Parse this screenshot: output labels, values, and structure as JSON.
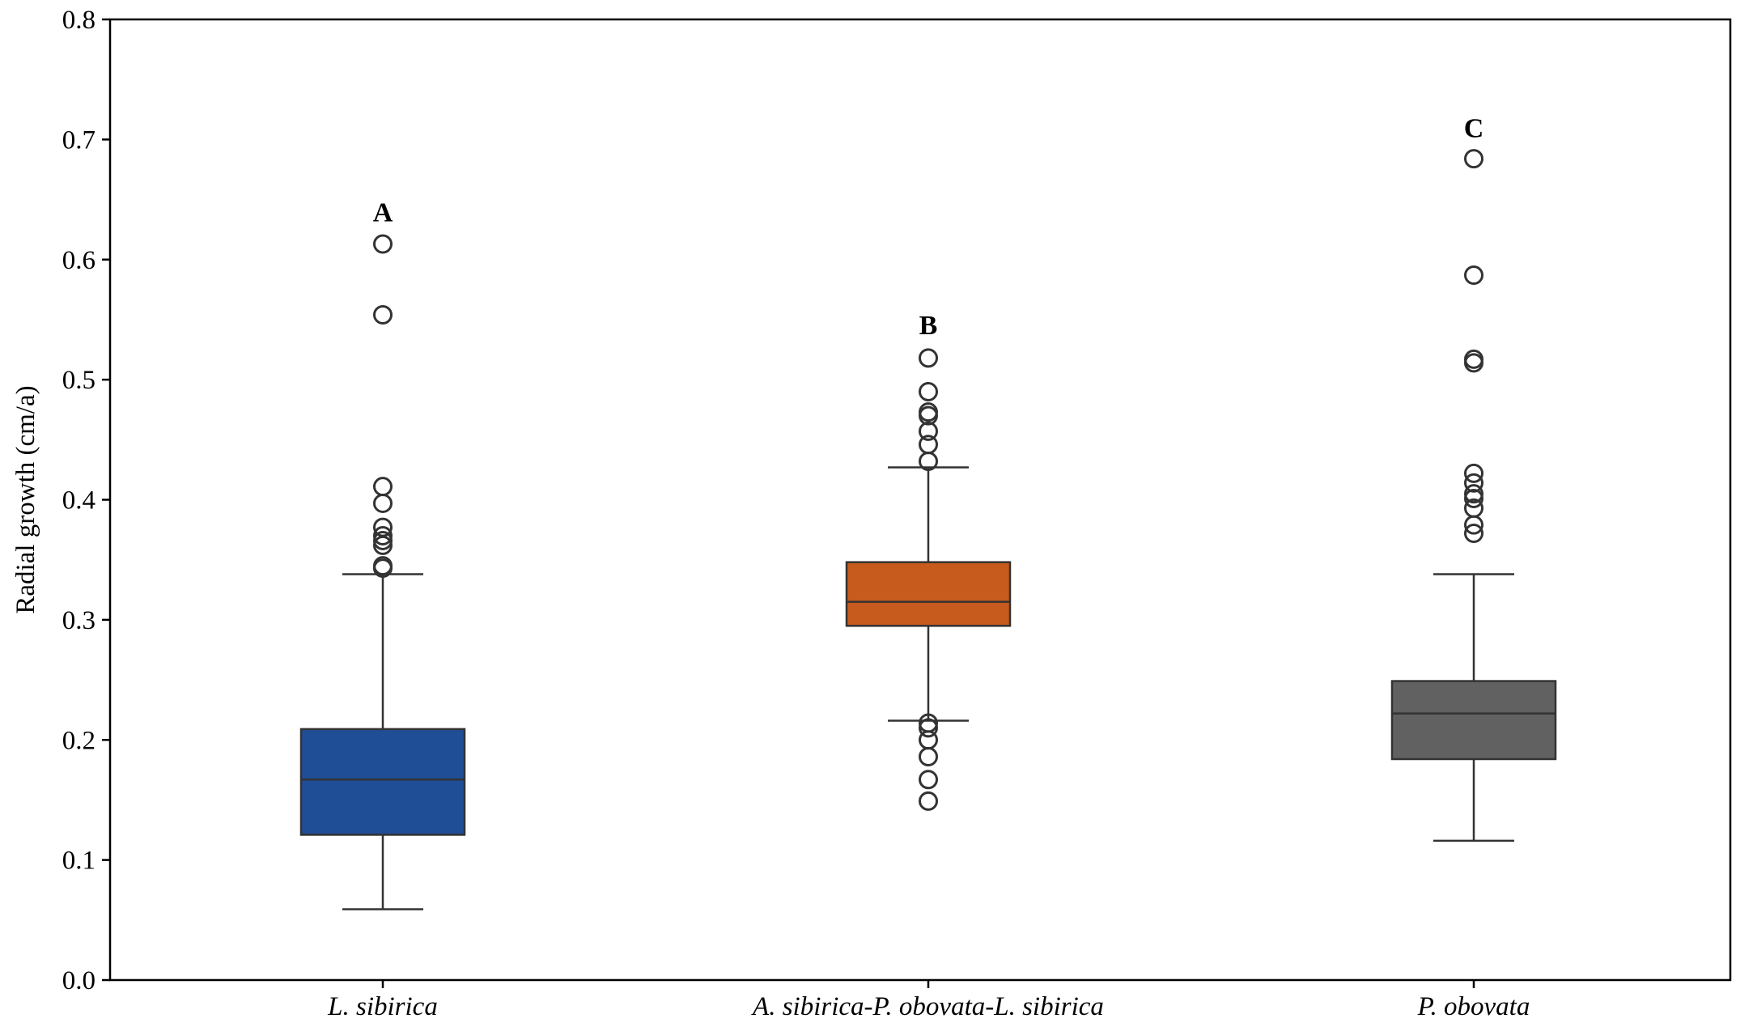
{
  "chart_data": {
    "type": "box",
    "ylabel": "Radial growth (cm/a)",
    "xlabel": "",
    "ylim": [
      0,
      0.8
    ],
    "yticks": [
      "0.0",
      "0.1",
      "0.2",
      "0.3",
      "0.4",
      "0.5",
      "0.6",
      "0.7",
      "0.8"
    ],
    "grid": false,
    "categories": [
      "L. sibirica",
      "A. sibirica-P. obovata-L. sibirica",
      "P. obovata"
    ],
    "boxes": [
      {
        "category": "L. sibirica",
        "color": "#1f4e96",
        "whisker_low": 0.059,
        "q1": 0.121,
        "median": 0.167,
        "q3": 0.209,
        "whisker_high": 0.338,
        "outliers": [
          0.613,
          0.554,
          0.411,
          0.397,
          0.377,
          0.37,
          0.366,
          0.362,
          0.345,
          0.343
        ],
        "letter": "A",
        "letter_y": 0.64
      },
      {
        "category": "A. sibirica-P. obovata-L. sibirica",
        "color": "#c75b1e",
        "whisker_low": 0.216,
        "q1": 0.295,
        "median": 0.315,
        "q3": 0.348,
        "whisker_high": 0.427,
        "outliers": [
          0.518,
          0.49,
          0.473,
          0.47,
          0.457,
          0.446,
          0.432,
          0.214,
          0.21,
          0.2,
          0.186,
          0.167,
          0.149
        ],
        "letter": "B",
        "letter_y": 0.546
      },
      {
        "category": "P. obovata",
        "color": "#616161",
        "whisker_low": 0.116,
        "q1": 0.184,
        "median": 0.222,
        "q3": 0.249,
        "whisker_high": 0.338,
        "outliers": [
          0.684,
          0.587,
          0.517,
          0.514,
          0.422,
          0.414,
          0.405,
          0.401,
          0.393,
          0.379,
          0.372
        ],
        "letter": "C",
        "letter_y": 0.71
      }
    ]
  }
}
